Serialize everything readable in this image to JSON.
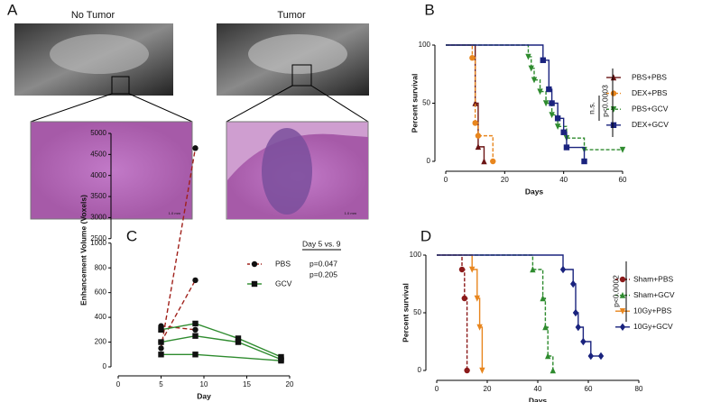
{
  "figure_a": {
    "label": "A",
    "panels": [
      {
        "title": "No Tumor",
        "scale_bar": "1.0 mm"
      },
      {
        "title": "Tumor",
        "scale_bar": "1.0 mm"
      }
    ]
  },
  "chart_data": [
    {
      "type": "step",
      "panel_label": "B",
      "x_label": "Days",
      "y_label": "Percent survival",
      "xlim": [
        0,
        60
      ],
      "xticks": [
        0,
        20,
        40,
        60
      ],
      "ylim": [
        0,
        100
      ],
      "yticks": [
        0,
        50,
        100
      ],
      "legend": "right",
      "series": [
        {
          "name": "PBS+PBS",
          "color": "#6b1515",
          "marker": "triangle-up",
          "dashed": false,
          "x": [
            0,
            10,
            11,
            13
          ],
          "values": [
            100,
            50,
            12.5,
            0
          ]
        },
        {
          "name": "DEX+PBS",
          "color": "#e8861e",
          "marker": "circle",
          "dashed": true,
          "x": [
            0,
            9,
            10,
            11,
            16
          ],
          "values": [
            100,
            89,
            33,
            22,
            0
          ]
        },
        {
          "name": "PBS+GCV",
          "color": "#2e8b2e",
          "marker": "triangle-down",
          "dashed": true,
          "x": [
            0,
            28,
            29,
            30,
            32,
            34,
            36,
            38,
            41,
            47,
            60
          ],
          "values": [
            100,
            90,
            80,
            70,
            60,
            50,
            40,
            30,
            20,
            10,
            10
          ]
        },
        {
          "name": "DEX+GCV",
          "color": "#1a237e",
          "marker": "square",
          "dashed": false,
          "x": [
            0,
            33,
            35,
            36,
            38,
            40,
            41,
            47
          ],
          "values": [
            100,
            87,
            62,
            50,
            37,
            25,
            12,
            0
          ]
        }
      ],
      "annotations": [
        "p<0.0003",
        "n.s."
      ]
    },
    {
      "type": "broken-line",
      "panel_label": "C",
      "x_label": "Day",
      "y_label": "Enhancement Volume (Voxels)",
      "xlim": [
        0,
        20
      ],
      "xticks": [
        0,
        5,
        10,
        15,
        20
      ],
      "ylim": [
        0,
        5000
      ],
      "y_break": [
        1000,
        2500
      ],
      "yticks": [
        0,
        200,
        400,
        600,
        800,
        1000,
        2500,
        3000,
        3500,
        4000,
        4500,
        5000
      ],
      "legend": "right",
      "series": [
        {
          "name": "PBS",
          "color": "#a0201a",
          "marker": "circle",
          "dashed": true,
          "lines": [
            {
              "x": [
                5,
                9
              ],
              "values": [
                150,
                4650
              ]
            },
            {
              "x": [
                5,
                9
              ],
              "values": [
                200,
                700
              ]
            },
            {
              "x": [
                5,
                9
              ],
              "values": [
                330,
                300
              ]
            }
          ]
        },
        {
          "name": "GCV",
          "color": "#2e8b2e",
          "marker": "square",
          "dashed": false,
          "lines": [
            {
              "x": [
                5,
                9,
                14,
                19
              ],
              "values": [
                300,
                350,
                230,
                80
              ]
            },
            {
              "x": [
                5,
                9,
                14,
                19
              ],
              "values": [
                200,
                250,
                200,
                60
              ]
            },
            {
              "x": [
                5,
                9,
                19
              ],
              "values": [
                100,
                100,
                50
              ]
            }
          ]
        }
      ],
      "annotations": [
        "Day 5 vs. 9",
        "p=0.047",
        "p=0.205"
      ]
    },
    {
      "type": "step",
      "panel_label": "D",
      "x_label": "Days",
      "y_label": "Percent survival",
      "xlim": [
        0,
        80
      ],
      "xticks": [
        0,
        20,
        40,
        60,
        80
      ],
      "ylim": [
        0,
        100
      ],
      "yticks": [
        0,
        50,
        100
      ],
      "legend": "right",
      "series": [
        {
          "name": "Sham+PBS",
          "color": "#8b1a1a",
          "marker": "circle",
          "dashed": true,
          "x": [
            0,
            10,
            11,
            12
          ],
          "values": [
            100,
            87.5,
            62.5,
            0
          ]
        },
        {
          "name": "Sham+GCV",
          "color": "#2e8b2e",
          "marker": "triangle-up",
          "dashed": true,
          "x": [
            0,
            38,
            42,
            43,
            44,
            46
          ],
          "values": [
            100,
            87.5,
            62.5,
            37.5,
            12.5,
            0
          ]
        },
        {
          "name": "10Gy+PBS",
          "color": "#e8861e",
          "marker": "triangle-down",
          "dashed": false,
          "x": [
            0,
            14,
            16,
            17,
            18
          ],
          "values": [
            100,
            87.5,
            62.5,
            37.5,
            0
          ]
        },
        {
          "name": "10Gy+GCV",
          "color": "#1a237e",
          "marker": "diamond",
          "dashed": false,
          "x": [
            0,
            50,
            54,
            55,
            56,
            58,
            61,
            65
          ],
          "values": [
            100,
            87.5,
            75,
            50,
            37.5,
            25,
            12.5,
            12.5
          ]
        }
      ],
      "annotations": [
        "p<0.0002"
      ]
    }
  ]
}
